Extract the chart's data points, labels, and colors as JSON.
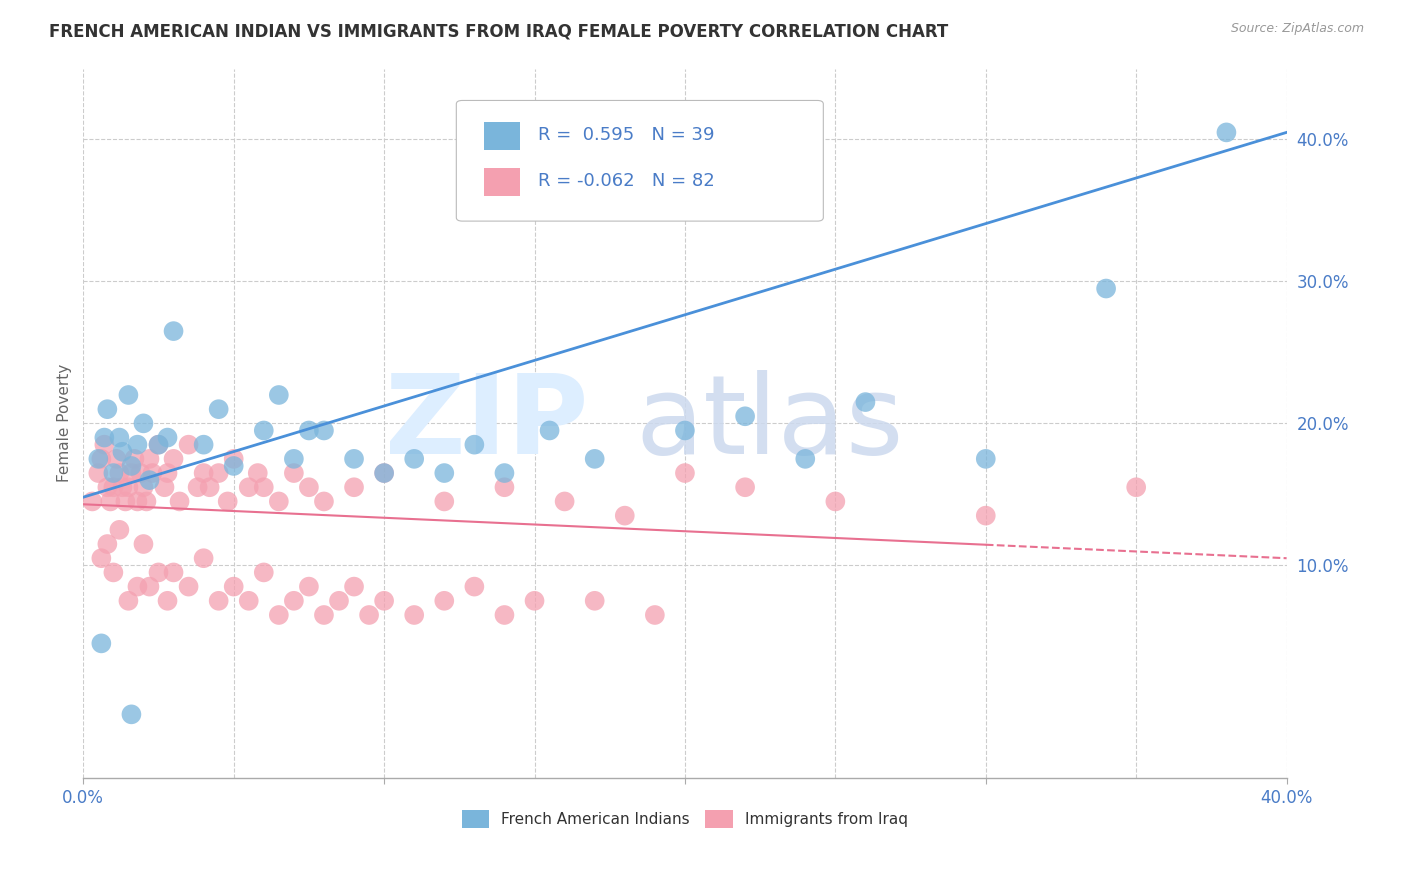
{
  "title": "FRENCH AMERICAN INDIAN VS IMMIGRANTS FROM IRAQ FEMALE POVERTY CORRELATION CHART",
  "source": "Source: ZipAtlas.com",
  "ylabel": "Female Poverty",
  "xlim": [
    0.0,
    0.4
  ],
  "ylim": [
    -0.05,
    0.45
  ],
  "series1_color": "#7ab5db",
  "series2_color": "#f4a0b0",
  "series1_line_color": "#4a90d9",
  "series2_line_color": "#e87090",
  "series1_label": "French American Indians",
  "series2_label": "Immigrants from Iraq",
  "R1": 0.595,
  "N1": 39,
  "R2": -0.062,
  "N2": 82,
  "text_color": "#4a7cc7",
  "background_color": "#ffffff",
  "grid_color": "#cccccc",
  "title_color": "#333333",
  "ylabel_color": "#666666",
  "line1_start_y": 0.148,
  "line1_end_y": 0.405,
  "line2_start_y": 0.143,
  "line2_end_y": 0.105,
  "scatter1_x": [
    0.005,
    0.007,
    0.008,
    0.01,
    0.012,
    0.013,
    0.015,
    0.016,
    0.018,
    0.02,
    0.022,
    0.025,
    0.028,
    0.03,
    0.04,
    0.045,
    0.05,
    0.06,
    0.065,
    0.07,
    0.075,
    0.08,
    0.09,
    0.1,
    0.11,
    0.12,
    0.13,
    0.14,
    0.155,
    0.17,
    0.2,
    0.22,
    0.24,
    0.26,
    0.3,
    0.34,
    0.38,
    0.006,
    0.016
  ],
  "scatter1_y": [
    0.175,
    0.19,
    0.21,
    0.165,
    0.19,
    0.18,
    0.22,
    0.17,
    0.185,
    0.2,
    0.16,
    0.185,
    0.19,
    0.265,
    0.185,
    0.21,
    0.17,
    0.195,
    0.22,
    0.175,
    0.195,
    0.195,
    0.175,
    0.165,
    0.175,
    0.165,
    0.185,
    0.165,
    0.195,
    0.175,
    0.195,
    0.205,
    0.175,
    0.215,
    0.175,
    0.295,
    0.405,
    0.045,
    -0.005
  ],
  "scatter2_x": [
    0.003,
    0.005,
    0.006,
    0.007,
    0.008,
    0.009,
    0.01,
    0.011,
    0.012,
    0.013,
    0.014,
    0.015,
    0.016,
    0.017,
    0.018,
    0.019,
    0.02,
    0.021,
    0.022,
    0.023,
    0.025,
    0.027,
    0.028,
    0.03,
    0.032,
    0.035,
    0.038,
    0.04,
    0.042,
    0.045,
    0.048,
    0.05,
    0.055,
    0.058,
    0.06,
    0.065,
    0.07,
    0.075,
    0.08,
    0.09,
    0.1,
    0.12,
    0.14,
    0.16,
    0.18,
    0.2,
    0.22,
    0.25,
    0.3,
    0.35,
    0.006,
    0.008,
    0.01,
    0.012,
    0.015,
    0.018,
    0.02,
    0.022,
    0.025,
    0.028,
    0.03,
    0.035,
    0.04,
    0.045,
    0.05,
    0.055,
    0.06,
    0.065,
    0.07,
    0.075,
    0.08,
    0.085,
    0.09,
    0.095,
    0.1,
    0.11,
    0.12,
    0.13,
    0.14,
    0.15,
    0.17,
    0.19
  ],
  "scatter2_y": [
    0.145,
    0.165,
    0.175,
    0.185,
    0.155,
    0.145,
    0.155,
    0.175,
    0.165,
    0.155,
    0.145,
    0.155,
    0.165,
    0.175,
    0.145,
    0.165,
    0.155,
    0.145,
    0.175,
    0.165,
    0.185,
    0.155,
    0.165,
    0.175,
    0.145,
    0.185,
    0.155,
    0.165,
    0.155,
    0.165,
    0.145,
    0.175,
    0.155,
    0.165,
    0.155,
    0.145,
    0.165,
    0.155,
    0.145,
    0.155,
    0.165,
    0.145,
    0.155,
    0.145,
    0.135,
    0.165,
    0.155,
    0.145,
    0.135,
    0.155,
    0.105,
    0.115,
    0.095,
    0.125,
    0.075,
    0.085,
    0.115,
    0.085,
    0.095,
    0.075,
    0.095,
    0.085,
    0.105,
    0.075,
    0.085,
    0.075,
    0.095,
    0.065,
    0.075,
    0.085,
    0.065,
    0.075,
    0.085,
    0.065,
    0.075,
    0.065,
    0.075,
    0.085,
    0.065,
    0.075,
    0.075,
    0.065
  ]
}
